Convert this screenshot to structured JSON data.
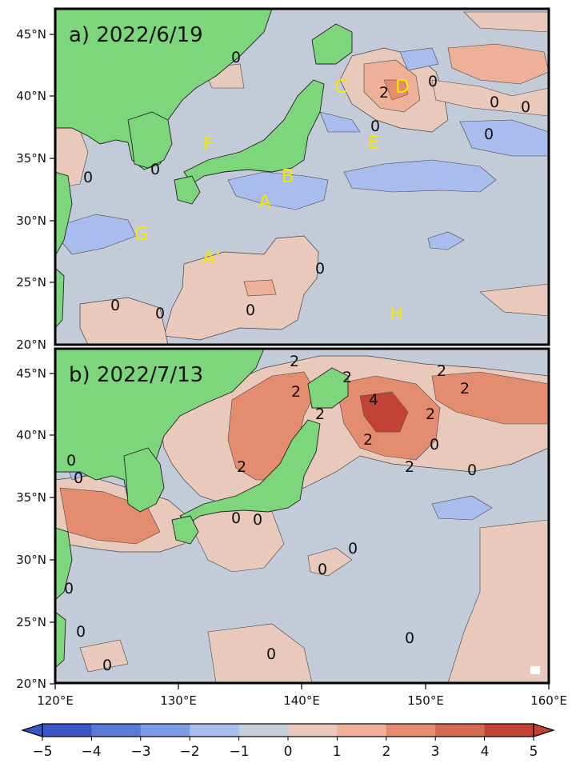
{
  "panels": [
    {
      "id": "a",
      "title": "a) 2022/6/19",
      "region_labels": [
        "C",
        "D",
        "F",
        "E",
        "B",
        "A",
        "G",
        "A’",
        "H"
      ],
      "contour_labels": [
        "0",
        "2",
        "0",
        "0",
        "0",
        "0",
        "0",
        "0",
        "0",
        "0",
        "0",
        "0",
        "0"
      ]
    },
    {
      "id": "b",
      "title": "b) 2022/7/13",
      "contour_labels": [
        "2",
        "2",
        "2",
        "2",
        "4",
        "2",
        "2",
        "2",
        "2",
        "2",
        "0",
        "0",
        "2",
        "0",
        "0",
        "0",
        "0",
        "0",
        "0",
        "0",
        "0",
        "0",
        "0",
        "0"
      ]
    }
  ],
  "lat_ticks": [
    "45°N",
    "40°N",
    "35°N",
    "30°N",
    "25°N",
    "20°N"
  ],
  "lon_ticks": [
    "120°E",
    "130°E",
    "140°E",
    "150°E",
    "160°E"
  ],
  "colorbar": {
    "ticks": [
      "−5",
      "−4",
      "−3",
      "−2",
      "−1",
      "0",
      "1",
      "2",
      "3",
      "4",
      "5"
    ],
    "colors": [
      "#3b55c8",
      "#5a7ad8",
      "#7f9ce6",
      "#a9bcee",
      "#c5cedb",
      "#e8c9bc",
      "#eeb099",
      "#e38c70",
      "#d46a50",
      "#c24235"
    ],
    "land_color": "#7dd67b",
    "ocean_color": "#c3cbd9"
  }
}
